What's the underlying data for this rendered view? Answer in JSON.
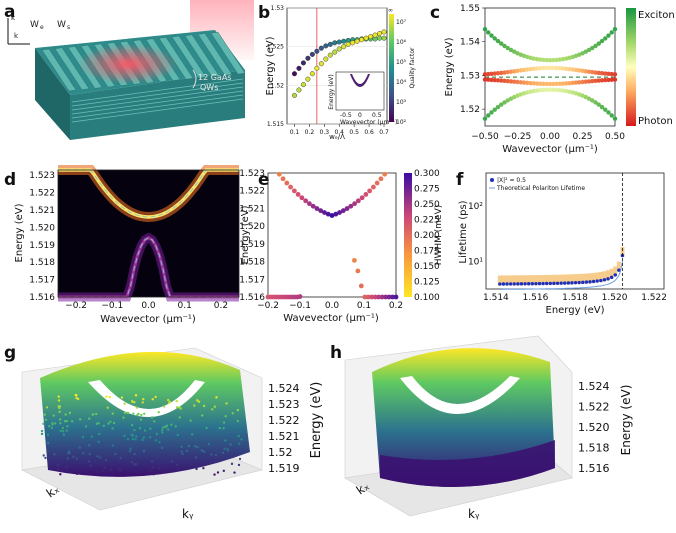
{
  "figure": {
    "panel_labels": [
      "a",
      "b",
      "c",
      "d",
      "e",
      "f",
      "g",
      "h"
    ]
  },
  "panel_a": {
    "label_qws": "12 GaAs",
    "label_qws2": "QWs",
    "label_w1": "W",
    "label_w1_sub": "e",
    "label_w2": "W",
    "label_w2_sub": "s",
    "axis_z": "k",
    "axis_x": "k"
  },
  "chart_data": [
    {
      "panel": "b",
      "type": "scatter",
      "xlabel": "wₑ/Λ",
      "ylabel": "Energy (eV)",
      "xticks": [
        "0.1",
        "0.2",
        "0.3",
        "0.4",
        "0.5",
        "0.6",
        "0.7"
      ],
      "yticks": [
        "1.515",
        "1.52",
        "1.525",
        "1.53"
      ],
      "xlim": [
        0.05,
        0.72
      ],
      "ylim": [
        1.515,
        1.53
      ],
      "vline_x": 0.25,
      "series": [
        {
          "name": "upper branch",
          "x": [
            0.1,
            0.13,
            0.16,
            0.19,
            0.22,
            0.25,
            0.28,
            0.31,
            0.34,
            0.37,
            0.4,
            0.43,
            0.46,
            0.49,
            0.52,
            0.55,
            0.58,
            0.61,
            0.64,
            0.67,
            0.7
          ],
          "y": [
            1.5215,
            1.5222,
            1.5229,
            1.5235,
            1.524,
            1.5244,
            1.5248,
            1.5251,
            1.5253,
            1.5255,
            1.5256,
            1.5257,
            1.5258,
            1.5259,
            1.5259,
            1.526,
            1.526,
            1.526,
            1.526,
            1.5261,
            1.5261
          ],
          "q": [
            2.2,
            2.4,
            2.6,
            2.8,
            3.0,
            3.2,
            3.4,
            3.6,
            3.8,
            4.0,
            4.2,
            4.4,
            4.6,
            4.8,
            5.0,
            5.2,
            5.4,
            5.6,
            5.8,
            6.0,
            6.2
          ]
        },
        {
          "name": "lower branch",
          "x": [
            0.1,
            0.13,
            0.16,
            0.19,
            0.22,
            0.25,
            0.28,
            0.31,
            0.34,
            0.37,
            0.4,
            0.43,
            0.46,
            0.49,
            0.52,
            0.55,
            0.58,
            0.61,
            0.64,
            0.67,
            0.7
          ],
          "y": [
            1.5187,
            1.5194,
            1.5201,
            1.5208,
            1.5215,
            1.5222,
            1.5228,
            1.5234,
            1.5239,
            1.5243,
            1.5247,
            1.525,
            1.5253,
            1.5255,
            1.5257,
            1.5259,
            1.5261,
            1.5263,
            1.5265,
            1.5267,
            1.5269
          ],
          "q": [
            6.4,
            6.5,
            6.6,
            6.7,
            6.8,
            6.9,
            6.8,
            6.7,
            6.6,
            6.5,
            6.6,
            6.7,
            6.8,
            6.9,
            6.8,
            6.9,
            6.8,
            6.9,
            6.8,
            6.9,
            6.8
          ]
        }
      ],
      "colorbar": {
        "label": "Quality factor",
        "ticks": [
          "10²",
          "10³",
          "10⁴",
          "10⁵",
          "10⁶",
          "10⁷"
        ],
        "top": "∞"
      },
      "inset": {
        "xlabel": "Wavevector (μm⁻¹)",
        "ylabel": "Energy (eV)",
        "xticks": [
          "-0.5",
          "0",
          "0.5"
        ]
      }
    },
    {
      "panel": "c",
      "type": "scatter",
      "xlabel": "Wavevector (μm⁻¹)",
      "ylabel": "Energy (eV)",
      "xticks": [
        "−0.50",
        "−0.25",
        "0.00",
        "0.25",
        "0.50"
      ],
      "yticks": [
        "1.52",
        "1.53",
        "1.54",
        "1.55"
      ],
      "xlim": [
        -0.5,
        0.5
      ],
      "ylim": [
        1.515,
        1.55
      ],
      "exciton_energy": 1.5295,
      "photon_energy_k0": 1.5325,
      "photon_slope": 0.042,
      "coupling": 0.0032,
      "colorbar": {
        "top": "Exciton",
        "bottom": "Photon"
      }
    },
    {
      "panel": "d",
      "type": "heatmap",
      "xlabel": "Wavevector (μm⁻¹)",
      "ylabel": "Energy (eV)",
      "xticks": [
        "−0.2",
        "−0.1",
        "0.0",
        "0.1",
        "0.2"
      ],
      "yticks": [
        "1.516",
        "1.517",
        "1.518",
        "1.519",
        "1.520",
        "1.521",
        "1.522",
        "1.523"
      ],
      "xlim": [
        -0.25,
        0.25
      ],
      "ylim": [
        1.516,
        1.5233
      ],
      "upper_min": 1.5206,
      "lower_max": 1.5194
    },
    {
      "panel": "e",
      "type": "scatter",
      "xlabel": "Wavevector (μm⁻¹)",
      "ylabel": "Energy (eV)",
      "xticks": [
        "−0.2",
        "−0.1",
        "0.0",
        "0.1",
        "0.2"
      ],
      "yticks": [
        "1.516",
        "1.517",
        "1.518",
        "1.519",
        "1.520",
        "1.521",
        "1.522",
        "1.523"
      ],
      "xlim": [
        -0.2,
        0.2
      ],
      "ylim": [
        1.516,
        1.523
      ],
      "colorbar": {
        "label": "HWHM (meV)",
        "ticks": [
          "0.100",
          "0.125",
          "0.150",
          "0.175",
          "0.200",
          "0.225",
          "0.250",
          "0.275",
          "0.300"
        ]
      }
    },
    {
      "panel": "f",
      "type": "scatter",
      "xlabel": "Energy (eV)",
      "ylabel": "Lifetime (ps)",
      "xticks": [
        "1.514",
        "1.516",
        "1.518",
        "1.520",
        "1.522"
      ],
      "yticks": [
        "10¹",
        "10²"
      ],
      "xlim": [
        1.5135,
        1.5225
      ],
      "ylim_log": [
        0.5,
        2.6
      ],
      "vline_x": 1.5204,
      "legend": [
        "|X|² = 0.5",
        "Theoretical Polariton Lifetime"
      ]
    },
    {
      "panel": "g",
      "type": "surface-3d",
      "zlabel": "Energy (eV)",
      "zticks": [
        "1.524",
        "1.523",
        "1.522",
        "1.521",
        "1.52",
        "1.519"
      ],
      "xlabel": "kₓ",
      "ylabel": "kᵧ"
    },
    {
      "panel": "h",
      "type": "surface-3d",
      "zlabel": "Energy (eV)",
      "zticks": [
        "1.524",
        "1.522",
        "1.520",
        "1.518",
        "1.516"
      ],
      "xlabel": "kₓ",
      "ylabel": "kᵧ"
    }
  ]
}
